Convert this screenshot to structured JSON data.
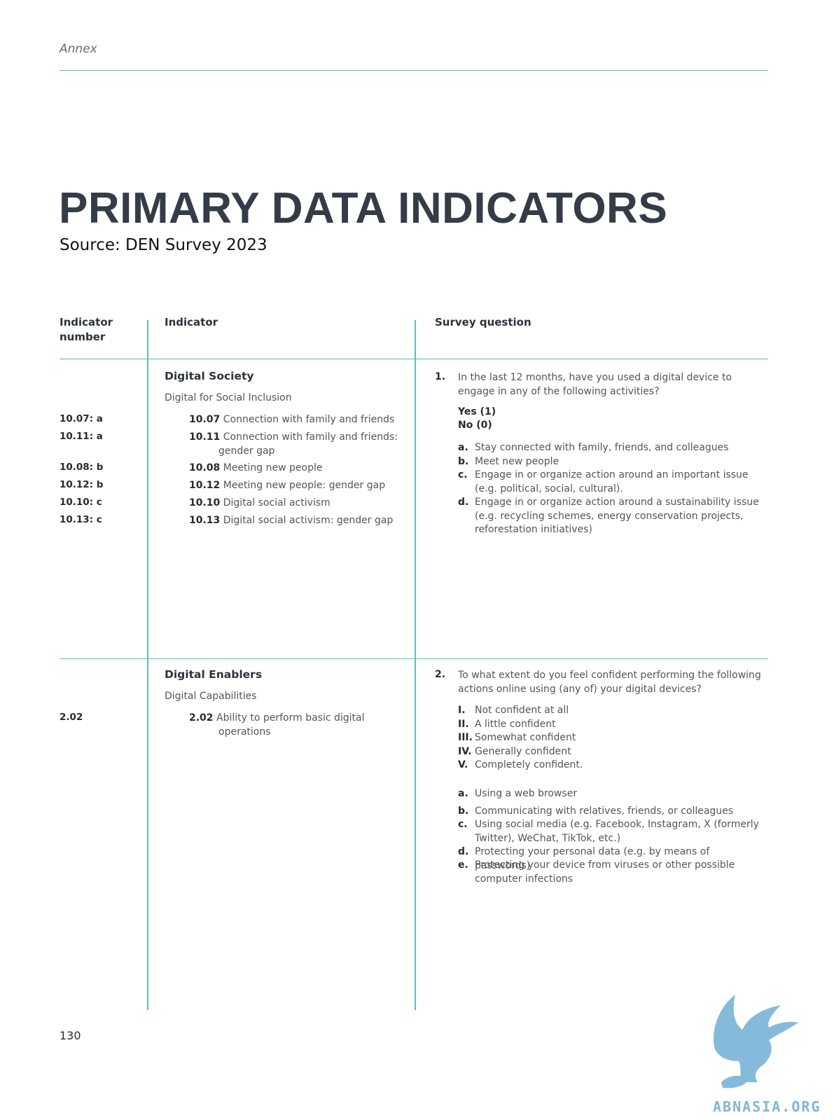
{
  "header": {
    "running_title": "Annex"
  },
  "title": "PRIMARY DATA INDICATORS",
  "subtitle": "Source: DEN Survey 2023",
  "table": {
    "columns": [
      "Indicator\nnumber",
      "Indicator",
      "Survey question"
    ],
    "sections": [
      {
        "title": "Digital Society",
        "subtitle": "Digital for Social Inclusion",
        "numbers": [
          "10.07: a",
          "10.11: a",
          "10.08: b",
          "10.12: b",
          "10.10: c",
          "10.13: c"
        ],
        "indicators": [
          {
            "code": "10.07",
            "text": "Connection with family and friends"
          },
          {
            "code": "10.11",
            "text": "Connection with family and friends: gender gap"
          },
          {
            "code": "10.08",
            "text": "Meeting new people"
          },
          {
            "code": "10.12",
            "text": "Meeting new people: gender gap"
          },
          {
            "code": "10.10",
            "text": "Digital social activism"
          },
          {
            "code": "10.13",
            "text": "Digital social activism: gender gap"
          }
        ],
        "question": {
          "number": "1.",
          "text": "In the last 12 months, have you used a digital device to engage in any of the following activities?",
          "scale": [
            "Yes (1)",
            "No (0)"
          ],
          "options": [
            {
              "key": "a.",
              "text": "Stay connected with family, friends, and colleagues"
            },
            {
              "key": "b.",
              "text": "Meet new people"
            },
            {
              "key": "c.",
              "text": "Engage in or organize action around an important issue (e.g. political, social, cultural)."
            },
            {
              "key": "d.",
              "text": "Engage in or organize action around a sustainability issue (e.g. recycling schemes, energy conservation projects, reforestation initiatives)"
            }
          ]
        }
      },
      {
        "title": "Digital Enablers",
        "subtitle": "Digital Capabilities",
        "numbers": [
          "2.02"
        ],
        "indicators": [
          {
            "code": "2.02",
            "text": "Ability to perform basic digital operations"
          }
        ],
        "question": {
          "number": "2.",
          "text": "To what extent do you feel confident performing the following actions online using (any of) your digital devices?",
          "scale": [
            {
              "key": "I.",
              "text": "Not confident at all"
            },
            {
              "key": "II.",
              "text": "A little confident"
            },
            {
              "key": "III.",
              "text": "Somewhat confident"
            },
            {
              "key": "IV.",
              "text": "Generally confident"
            },
            {
              "key": "V.",
              "text": "Completely confident."
            }
          ],
          "options": [
            {
              "key": "a.",
              "text": "Using a web browser"
            },
            {
              "key": "b.",
              "text": "Communicating with relatives, friends, or colleagues"
            },
            {
              "key": "c.",
              "text": "Using social media (e.g. Facebook, Instagram, X (formerly Twitter), WeChat, TikTok, etc.)"
            },
            {
              "key": "d.",
              "text": "Protecting your personal data (e.g. by means of passwords)"
            },
            {
              "key": "e.",
              "text": "Protecting your device from viruses or other possible computer infections"
            }
          ]
        }
      }
    ]
  },
  "footer": {
    "page_number": "130"
  },
  "watermark": {
    "text": "ABNASIA.ORG",
    "icon": "griffin-logo-icon",
    "color": "#7fb6d8"
  },
  "colors": {
    "accent": "#5bbcbc",
    "title": "#353c47"
  }
}
